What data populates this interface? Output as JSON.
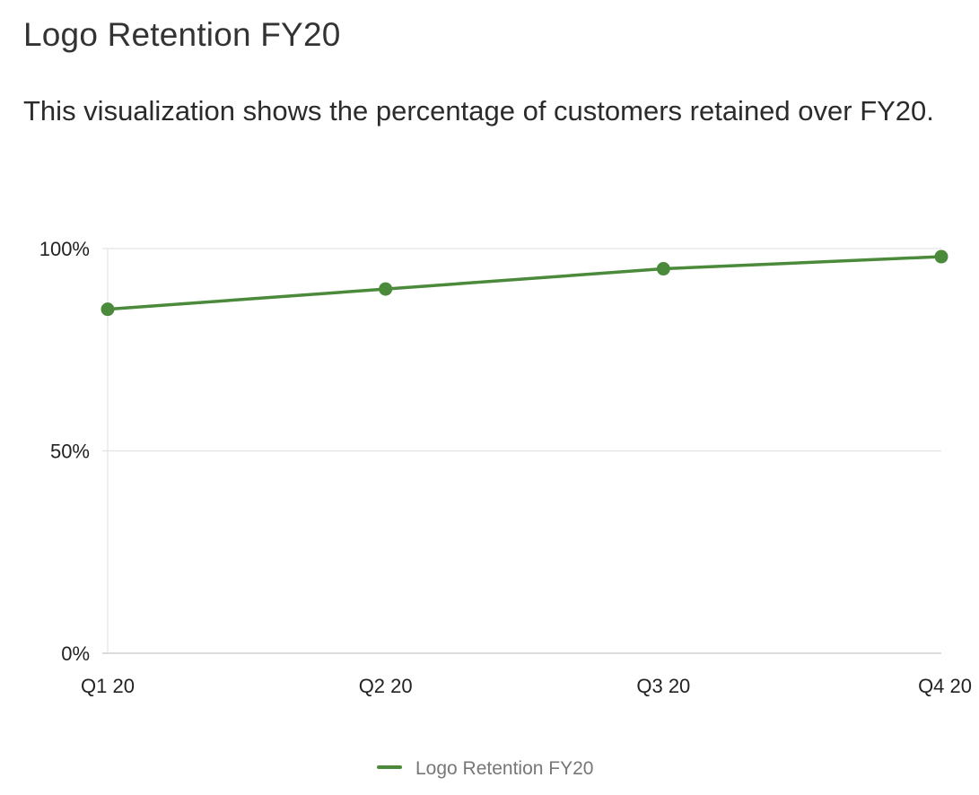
{
  "header": {
    "title": "Logo Retention FY20",
    "description": "This visualization shows the percentage of customers retained over FY20."
  },
  "chart_data": {
    "type": "line",
    "categories": [
      "Q1 20",
      "Q2 20",
      "Q3 20",
      "Q4 20"
    ],
    "series": [
      {
        "name": "Logo Retention FY20",
        "values": [
          85,
          90,
          95,
          98
        ],
        "color": "#4a8a3a"
      }
    ],
    "ylim": [
      0,
      100
    ],
    "yticks": [
      0,
      50,
      100
    ],
    "ytick_labels": [
      "0%",
      "50%",
      "100%"
    ],
    "grid": true,
    "legend_position": "bottom-center",
    "colors": {
      "grid": "#e3e3e3",
      "axis": "#cfcfcf",
      "series": "#4a8a3a",
      "legend_text": "#777777"
    }
  }
}
